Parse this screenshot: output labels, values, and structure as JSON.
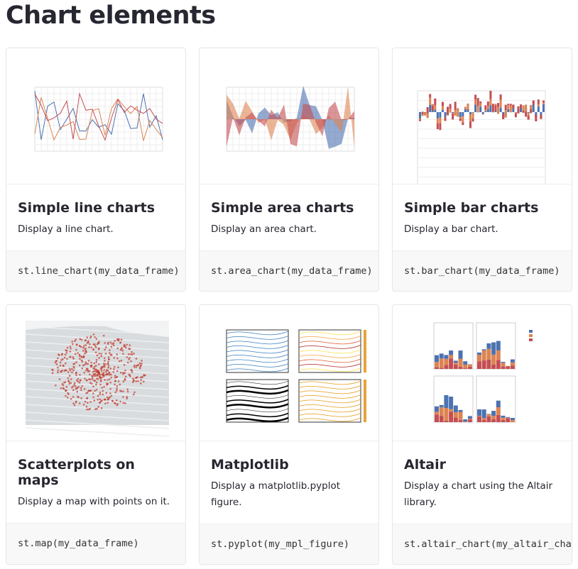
{
  "header": {
    "title": "Chart elements"
  },
  "cards": [
    {
      "title": "Simple line charts",
      "description": "Display a line chart.",
      "code": "st.line_chart(my_data_frame)"
    },
    {
      "title": "Simple area charts",
      "description": "Display an area chart.",
      "code": "st.area_chart(my_data_frame)"
    },
    {
      "title": "Simple bar charts",
      "description": "Display a bar chart.",
      "code": "st.bar_chart(my_data_frame)"
    },
    {
      "title": "Scatterplots on maps",
      "description": "Display a map with points on it.",
      "code": "st.map(my_data_frame)"
    },
    {
      "title": "Matplotlib",
      "description": "Display a matplotlib.pyplot figure.",
      "code": "st.pyplot(my_mpl_figure)"
    },
    {
      "title": "Altair",
      "description": "Display a chart using the Altair library.",
      "code": "st.altair_chart(my_altair_chart)"
    }
  ]
}
